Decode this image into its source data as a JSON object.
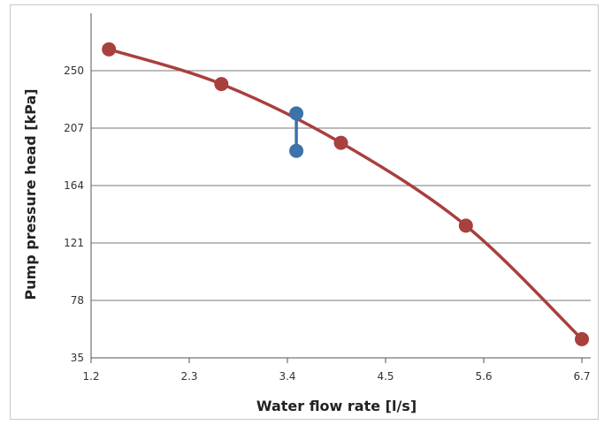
{
  "chart_data": {
    "type": "line",
    "xlabel": "Water flow rate [l/s]",
    "ylabel": "Pump pressure head [kPa]",
    "xlim": [
      1.2,
      6.7
    ],
    "ylim": [
      35,
      293
    ],
    "x_ticks": [
      "1.2",
      "2.3",
      "3.4",
      "4.5",
      "5.6",
      "6.7"
    ],
    "y_ticks": [
      "35",
      "78",
      "121",
      "164",
      "207",
      "250"
    ],
    "grid": "horizontal",
    "series": [
      {
        "color": "#a8403e",
        "points": [
          {
            "x": 1.4,
            "y": 266
          },
          {
            "x": 2.66,
            "y": 240
          },
          {
            "x": 4.0,
            "y": 196
          },
          {
            "x": 5.4,
            "y": 134
          },
          {
            "x": 6.7,
            "y": 49
          }
        ]
      },
      {
        "color": "#3d72aa",
        "points": [
          {
            "x": 3.5,
            "y": 218
          },
          {
            "x": 3.5,
            "y": 190
          }
        ]
      }
    ]
  }
}
